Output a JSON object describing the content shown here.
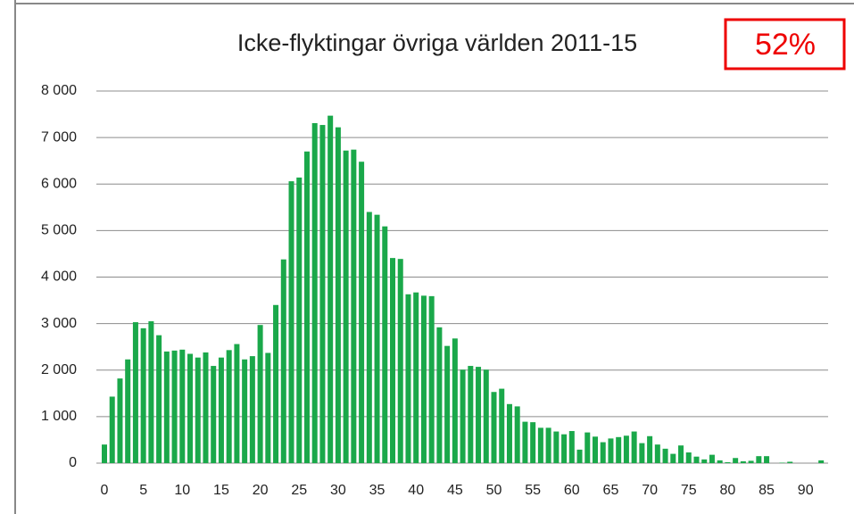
{
  "chart_data": {
    "type": "bar",
    "title": "Icke-flyktingar övriga världen 2011-15",
    "annotation": "52%",
    "color": "#1aa84a",
    "grid": true,
    "categories": [
      "0",
      null,
      null,
      null,
      null,
      "5",
      null,
      null,
      null,
      null,
      "10",
      null,
      null,
      null,
      null,
      "15",
      null,
      null,
      null,
      null,
      "20",
      null,
      null,
      null,
      null,
      "25",
      null,
      null,
      null,
      null,
      "30",
      null,
      null,
      null,
      null,
      "35",
      null,
      null,
      null,
      null,
      "40",
      null,
      null,
      null,
      null,
      "45",
      null,
      null,
      null,
      null,
      "50",
      null,
      null,
      null,
      null,
      "55",
      null,
      null,
      null,
      null,
      "60",
      null,
      null,
      null,
      null,
      "65",
      null,
      null,
      null,
      null,
      "70",
      null,
      null,
      null,
      null,
      "75",
      null,
      null,
      null,
      null,
      "80",
      null,
      null,
      null,
      null,
      "85",
      null,
      null,
      null,
      null,
      "90",
      null,
      null
    ],
    "values": [
      400,
      1430,
      1820,
      2230,
      3030,
      2900,
      3050,
      2750,
      2400,
      2420,
      2440,
      2350,
      2270,
      2380,
      2090,
      2270,
      2430,
      2560,
      2230,
      2300,
      2970,
      2370,
      3400,
      4380,
      6060,
      6140,
      6700,
      7310,
      7270,
      7470,
      7220,
      6720,
      6740,
      6480,
      5400,
      5340,
      5090,
      4410,
      4390,
      3630,
      3670,
      3600,
      3590,
      2920,
      2520,
      2680,
      2010,
      2090,
      2070,
      2010,
      1530,
      1600,
      1270,
      1220,
      890,
      880,
      760,
      760,
      680,
      620,
      690,
      290,
      660,
      570,
      450,
      530,
      560,
      590,
      680,
      430,
      580,
      400,
      310,
      200,
      380,
      230,
      140,
      80,
      180,
      60,
      20,
      110,
      40,
      50,
      150,
      150,
      0,
      10,
      30,
      0,
      0,
      0,
      60
    ],
    "ylim": [
      0,
      8000
    ],
    "yticks": [
      0,
      {
        "value": 1000,
        "label": "1 000"
      },
      {
        "value": 2000,
        "label": "2 000"
      },
      {
        "value": 3000,
        "label": "3 000"
      },
      {
        "value": 4000,
        "label": "4 000"
      },
      {
        "value": 5000,
        "label": "5 000"
      },
      {
        "value": 6000,
        "label": "6 000"
      },
      {
        "value": 7000,
        "label": "7 000"
      },
      {
        "value": 8000,
        "label": "8 000"
      }
    ]
  }
}
